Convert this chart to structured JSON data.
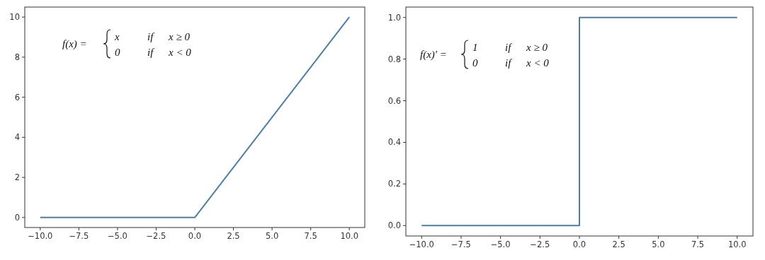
{
  "chart_data": [
    {
      "type": "line",
      "x": [
        -10,
        0,
        10
      ],
      "series": [
        {
          "color": "#4f7ea0",
          "values": [
            0,
            0,
            10
          ]
        }
      ],
      "xlim": [
        -11,
        11
      ],
      "ylim": [
        -0.5,
        10.5
      ],
      "xticks": [
        {
          "value": -10,
          "label": "−10.0"
        },
        {
          "value": -7.5,
          "label": "−7.5"
        },
        {
          "value": -5,
          "label": "−5.0"
        },
        {
          "value": -2.5,
          "label": "−2.5"
        },
        {
          "value": 0,
          "label": "0.0"
        },
        {
          "value": 2.5,
          "label": "2.5"
        },
        {
          "value": 5,
          "label": "5.0"
        },
        {
          "value": 7.5,
          "label": "7.5"
        },
        {
          "value": 10,
          "label": "10.0"
        }
      ],
      "yticks": [
        0,
        2,
        4,
        6,
        8,
        10
      ],
      "line_style": "solid",
      "annotations": [
        "f(x) =",
        "x",
        "if",
        "x ≥ 0",
        "0",
        "if",
        "x < 0"
      ]
    },
    {
      "type": "step",
      "x": [
        -10,
        0,
        10
      ],
      "series": [
        {
          "color": "#4f7ea0",
          "values": [
            0,
            1,
            1
          ]
        }
      ],
      "xlim": [
        -11,
        11
      ],
      "ylim": [
        -0.05,
        1.05
      ],
      "xticks": [
        {
          "value": -10,
          "label": "−10.0"
        },
        {
          "value": -7.5,
          "label": "−7.5"
        },
        {
          "value": -5,
          "label": "−5.0"
        },
        {
          "value": -2.5,
          "label": "−2.5"
        },
        {
          "value": 0,
          "label": "0.0"
        },
        {
          "value": 2.5,
          "label": "2.5"
        },
        {
          "value": 5,
          "label": "5.0"
        },
        {
          "value": 7.5,
          "label": "7.5"
        },
        {
          "value": 10,
          "label": "10.0"
        }
      ],
      "yticks": [
        {
          "value": 0,
          "label": "0.0"
        },
        {
          "value": 0.2,
          "label": "0.2"
        },
        {
          "value": 0.4,
          "label": "0.4"
        },
        {
          "value": 0.6,
          "label": "0.6"
        },
        {
          "value": 0.8,
          "label": "0.8"
        },
        {
          "value": 1,
          "label": "1.0"
        }
      ],
      "line_style": "solid",
      "annotations": [
        "f(x)′ =",
        "1",
        "if",
        "x ≥ 0",
        "0",
        "if",
        "x < 0"
      ]
    }
  ]
}
